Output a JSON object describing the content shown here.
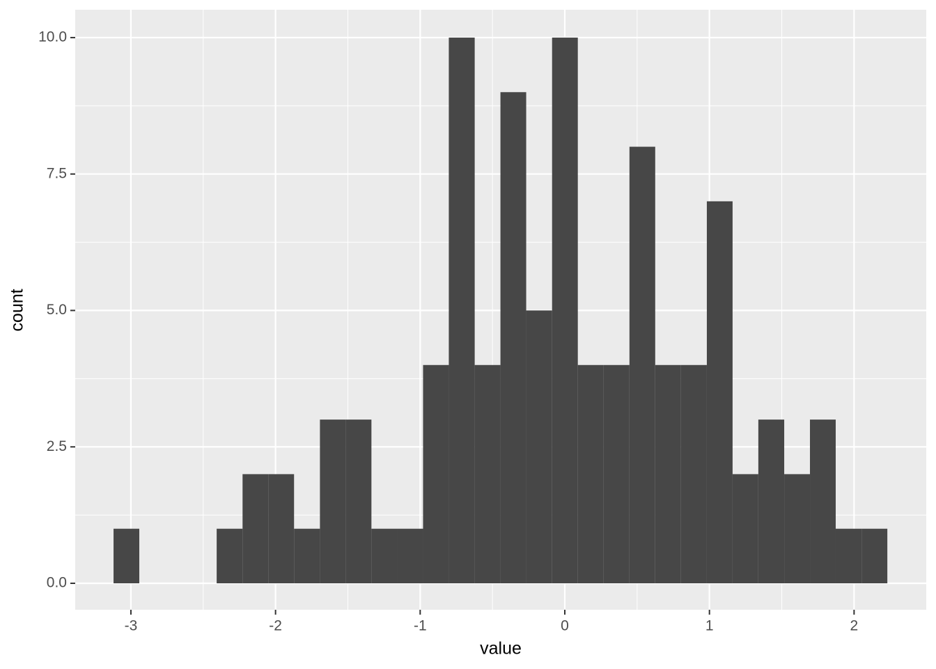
{
  "chart_data": {
    "type": "histogram",
    "x_label": "value",
    "y_label": "count",
    "bins": [
      -3.12,
      -2.942,
      -2.763,
      -2.585,
      -2.407,
      -2.228,
      -2.05,
      -1.872,
      -1.693,
      -1.515,
      -1.337,
      -1.158,
      -0.98,
      -0.802,
      -0.623,
      -0.445,
      -0.267,
      -0.088,
      0.09,
      0.268,
      0.447,
      0.625,
      0.803,
      0.982,
      1.16,
      1.338,
      1.517,
      1.695,
      1.873,
      2.052,
      2.23
    ],
    "values": [
      1,
      0,
      0,
      0,
      1,
      2,
      2,
      1,
      3,
      3,
      1,
      1,
      4,
      10,
      4,
      9,
      5,
      10,
      4,
      4,
      8,
      4,
      4,
      7,
      2,
      3,
      2,
      3,
      1,
      1
    ],
    "color": "#474747",
    "xlim": [
      -3.385,
      2.499
    ],
    "xticks": [
      -3,
      -2,
      -1,
      0,
      1,
      2
    ],
    "ylim": [
      -0.485,
      10.51
    ],
    "yticks": [
      {
        "value": 0,
        "label": "0.0"
      },
      {
        "value": 2.5,
        "label": "2.5"
      },
      {
        "value": 5,
        "label": "5.0"
      },
      {
        "value": 7.5,
        "label": "7.5"
      },
      {
        "value": 10,
        "label": "10.0"
      }
    ],
    "grid": true
  }
}
